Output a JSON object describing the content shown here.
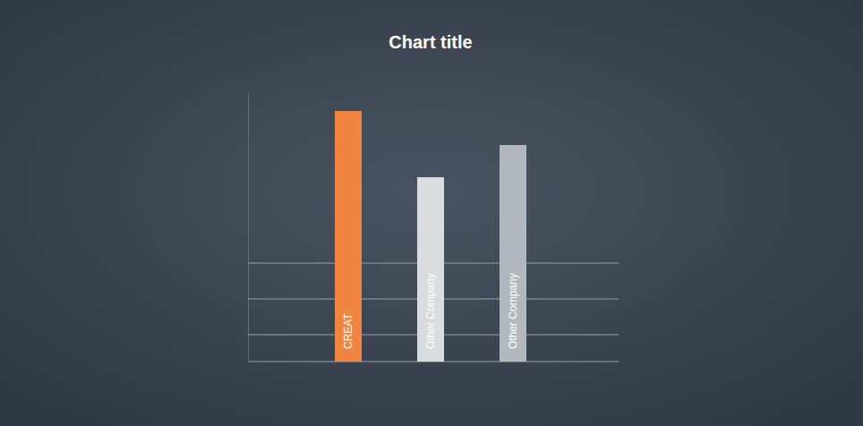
{
  "chart_data": {
    "type": "bar",
    "title": "Chart title",
    "categories": [
      "CREAT",
      "Other Company",
      "Other Company"
    ],
    "values": [
      28,
      20.6,
      24.2
    ],
    "colors": [
      "#f08441",
      "#d8dcdf",
      "#b3b8bf"
    ],
    "ylim": [
      0,
      30
    ],
    "yticks": [
      0,
      3,
      7,
      11
    ],
    "grid": true,
    "tick_labels": false
  }
}
